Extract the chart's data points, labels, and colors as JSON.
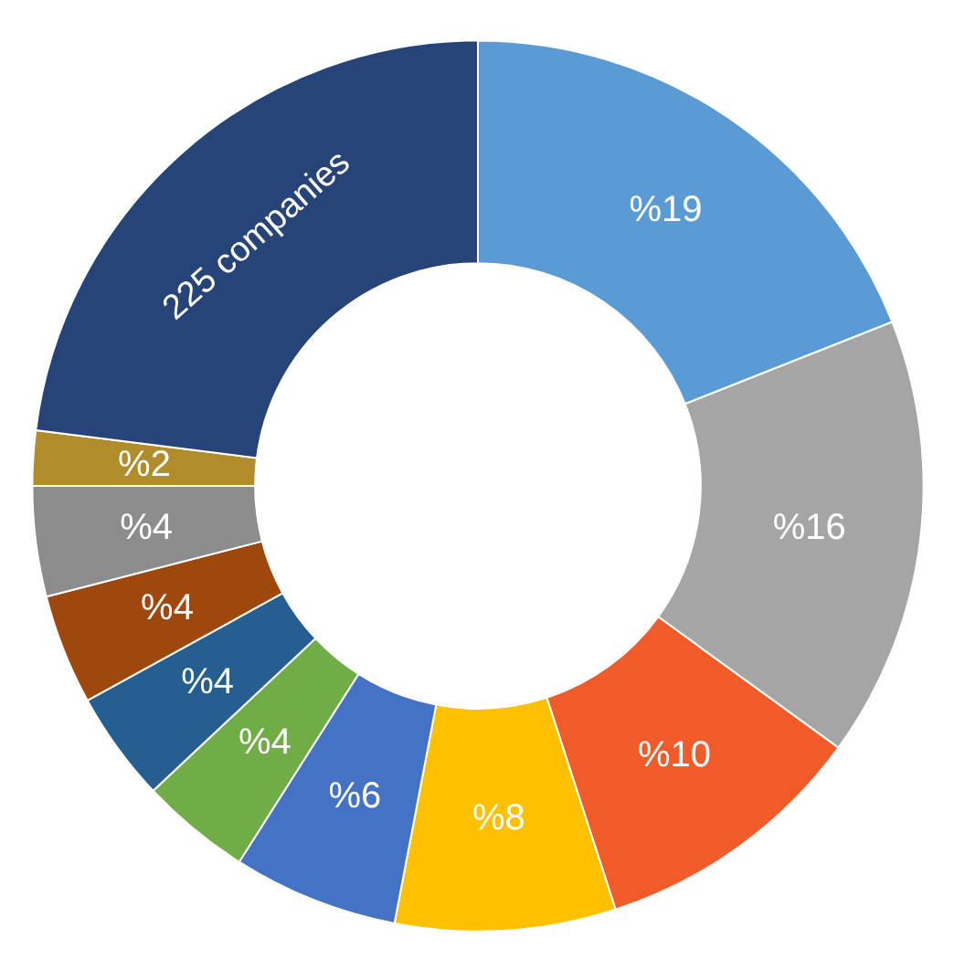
{
  "chart_data": {
    "type": "donut",
    "categories": [
      null,
      null,
      null,
      null,
      null,
      null,
      null,
      null,
      null,
      null,
      "225 companies"
    ],
    "values": [
      19,
      16,
      10,
      8,
      6,
      4,
      4,
      4,
      4,
      2,
      23
    ],
    "value_labels": [
      "%19",
      "%16",
      "%10",
      "%8",
      "%6",
      "%4",
      "%4",
      "%4",
      "%4",
      "%2",
      null
    ],
    "colors": [
      "#5b9bd5",
      "#a5a5a5",
      "#f15a29",
      "#ffc000",
      "#4472c4",
      "#70ad47",
      "#255e91",
      "#9e480e",
      "#8c8c8c",
      "#b08c2a",
      "#264478"
    ],
    "legend": false
  }
}
